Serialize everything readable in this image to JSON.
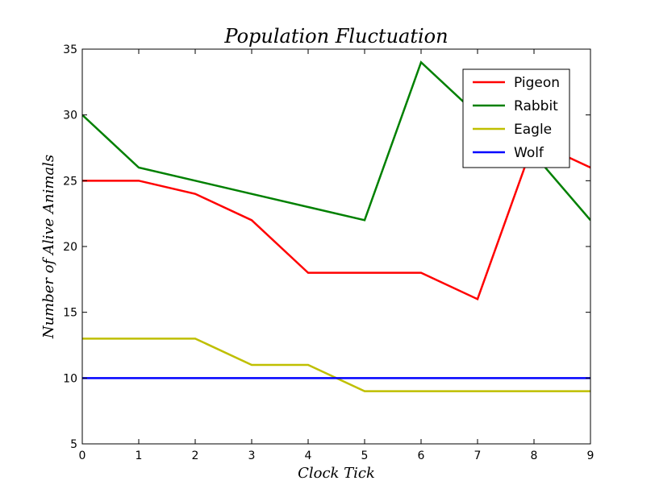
{
  "chart_data": {
    "type": "line",
    "title": "Population Fluctuation",
    "xlabel": "Clock Tick",
    "ylabel": "Number of Alive Animals",
    "x": [
      0,
      1,
      2,
      3,
      4,
      5,
      6,
      7,
      8,
      9
    ],
    "xlim": [
      0,
      9
    ],
    "ylim": [
      5,
      35
    ],
    "xticks": [
      0,
      1,
      2,
      3,
      4,
      5,
      6,
      7,
      8,
      9
    ],
    "yticks": [
      5,
      10,
      15,
      20,
      25,
      30,
      35
    ],
    "grid": false,
    "legend_position": "top-right",
    "series": [
      {
        "name": "Pigeon",
        "color": "#ff0000",
        "values": [
          25,
          25,
          24,
          22,
          18,
          18,
          18,
          16,
          28,
          26
        ]
      },
      {
        "name": "Rabbit",
        "color": "#008000",
        "values": [
          30,
          26,
          25,
          24,
          23,
          22,
          34,
          30,
          27,
          22
        ]
      },
      {
        "name": "Eagle",
        "color": "#bfbf00",
        "values": [
          13,
          13,
          13,
          11,
          11,
          9,
          9,
          9,
          9,
          9
        ]
      },
      {
        "name": "Wolf",
        "color": "#0000ff",
        "values": [
          10,
          10,
          10,
          10,
          10,
          10,
          10,
          10,
          10,
          10
        ]
      }
    ]
  }
}
